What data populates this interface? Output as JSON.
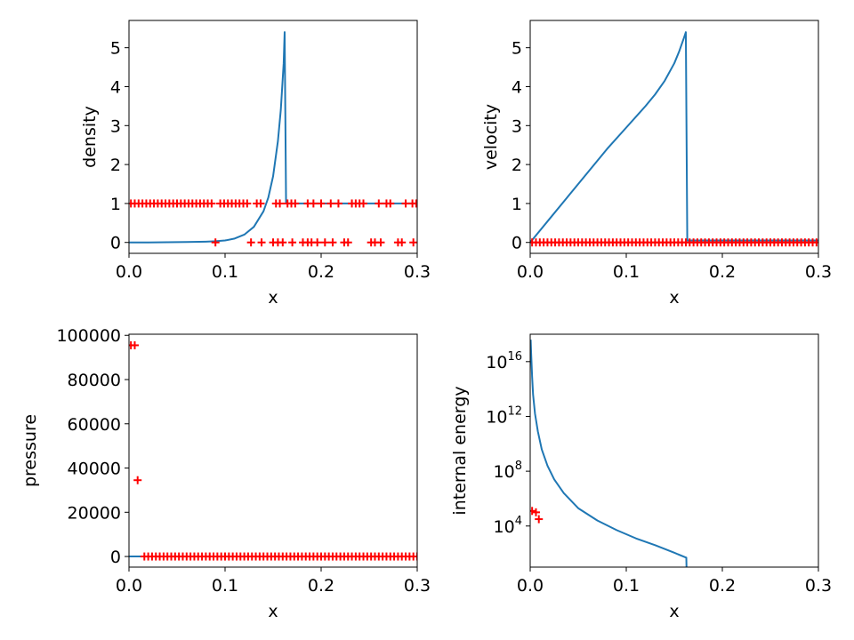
{
  "colors": {
    "line": "#1f77b4",
    "marker": "#ff0000",
    "axes": "#000000"
  },
  "chart_data": [
    {
      "type": "line",
      "xlabel": "x",
      "ylabel": "density",
      "xlim": [
        0,
        0.3
      ],
      "ylim": [
        -0.28,
        5.7
      ],
      "xticks": [
        0,
        0.1,
        0.2,
        0.3
      ],
      "xtick_labels": [
        "0.0",
        "0.1",
        "0.2",
        "0.3"
      ],
      "yticks": [
        0,
        1,
        2,
        3,
        4,
        5
      ],
      "ytick_labels": [
        "0",
        "1",
        "2",
        "3",
        "4",
        "5"
      ],
      "grid": false,
      "series": [
        {
          "kind": "line",
          "x": [
            0,
            0.02,
            0.04,
            0.06,
            0.08,
            0.09,
            0.1,
            0.11,
            0.12,
            0.13,
            0.14,
            0.145,
            0.15,
            0.155,
            0.158,
            0.161,
            0.162,
            0.1635,
            0.17,
            0.2,
            0.25,
            0.3
          ],
          "y": [
            0,
            0,
            0.005,
            0.01,
            0.02,
            0.03,
            0.05,
            0.1,
            0.2,
            0.4,
            0.8,
            1.15,
            1.7,
            2.6,
            3.4,
            4.6,
            5.4,
            1.0,
            1.0,
            1.0,
            1.0,
            1.0
          ]
        },
        {
          "kind": "scatter",
          "marker": "+",
          "x": [
            0.002,
            0.006,
            0.01,
            0.014,
            0.018,
            0.022,
            0.026,
            0.03,
            0.034,
            0.038,
            0.042,
            0.046,
            0.05,
            0.054,
            0.058,
            0.062,
            0.066,
            0.07,
            0.074,
            0.078,
            0.082,
            0.086,
            0.095,
            0.099,
            0.103,
            0.107,
            0.111,
            0.115,
            0.119,
            0.123,
            0.133,
            0.137,
            0.153,
            0.157,
            0.165,
            0.169,
            0.173,
            0.186,
            0.192,
            0.2,
            0.21,
            0.218,
            0.232,
            0.236,
            0.24,
            0.244,
            0.26,
            0.268,
            0.272,
            0.288,
            0.295,
            0.299,
            0.09,
            0.127,
            0.138,
            0.15,
            0.155,
            0.16,
            0.17,
            0.181,
            0.186,
            0.19,
            0.196,
            0.204,
            0.212,
            0.224,
            0.228,
            0.252,
            0.256,
            0.262,
            0.28,
            0.284,
            0.296
          ],
          "y": [
            1,
            1,
            1,
            1,
            1,
            1,
            1,
            1,
            1,
            1,
            1,
            1,
            1,
            1,
            1,
            1,
            1,
            1,
            1,
            1,
            1,
            1,
            1,
            1,
            1,
            1,
            1,
            1,
            1,
            1,
            1,
            1,
            1,
            1,
            1,
            1,
            1,
            1,
            1,
            1,
            1,
            1,
            1,
            1,
            1,
            1,
            1,
            1,
            1,
            1,
            1,
            1,
            0,
            0,
            0,
            0,
            0,
            0,
            0,
            0,
            0,
            0,
            0,
            0,
            0,
            0,
            0,
            0,
            0,
            0,
            0,
            0,
            0
          ]
        }
      ]
    },
    {
      "type": "line",
      "xlabel": "x",
      "ylabel": "velocity",
      "xlim": [
        0,
        0.3
      ],
      "ylim": [
        -0.28,
        5.7
      ],
      "xticks": [
        0,
        0.1,
        0.2,
        0.3
      ],
      "xtick_labels": [
        "0.0",
        "0.1",
        "0.2",
        "0.3"
      ],
      "yticks": [
        0,
        1,
        2,
        3,
        4,
        5
      ],
      "ytick_labels": [
        "0",
        "1",
        "2",
        "3",
        "4",
        "5"
      ],
      "grid": false,
      "series": [
        {
          "kind": "line",
          "x": [
            0,
            0.02,
            0.04,
            0.06,
            0.08,
            0.1,
            0.12,
            0.13,
            0.14,
            0.15,
            0.155,
            0.16,
            0.162,
            0.1635,
            0.164,
            0.2,
            0.3
          ],
          "y": [
            0,
            0.6,
            1.2,
            1.8,
            2.4,
            2.95,
            3.5,
            3.8,
            4.15,
            4.6,
            4.9,
            5.25,
            5.4,
            0.05,
            0.05,
            0.05,
            0.05
          ]
        },
        {
          "kind": "scatter",
          "marker": "+",
          "x": [
            0.002,
            0.006,
            0.01,
            0.014,
            0.018,
            0.022,
            0.026,
            0.03,
            0.034,
            0.038,
            0.042,
            0.046,
            0.05,
            0.054,
            0.058,
            0.062,
            0.066,
            0.07,
            0.074,
            0.078,
            0.082,
            0.086,
            0.09,
            0.094,
            0.098,
            0.102,
            0.106,
            0.11,
            0.114,
            0.118,
            0.122,
            0.126,
            0.13,
            0.134,
            0.138,
            0.142,
            0.146,
            0.15,
            0.154,
            0.158,
            0.162,
            0.166,
            0.17,
            0.174,
            0.178,
            0.182,
            0.186,
            0.19,
            0.194,
            0.198,
            0.202,
            0.206,
            0.21,
            0.214,
            0.218,
            0.222,
            0.226,
            0.23,
            0.234,
            0.238,
            0.242,
            0.246,
            0.25,
            0.254,
            0.258,
            0.262,
            0.266,
            0.27,
            0.274,
            0.278,
            0.282,
            0.286,
            0.29,
            0.294,
            0.298
          ],
          "y": [
            0,
            0,
            0,
            0,
            0,
            0,
            0,
            0,
            0,
            0,
            0,
            0,
            0,
            0,
            0,
            0,
            0,
            0,
            0,
            0,
            0,
            0,
            0,
            0,
            0,
            0,
            0,
            0,
            0,
            0,
            0,
            0,
            0,
            0,
            0,
            0,
            0,
            0,
            0,
            0,
            0,
            0,
            0,
            0,
            0,
            0,
            0,
            0,
            0,
            0,
            0,
            0,
            0,
            0,
            0,
            0,
            0,
            0,
            0,
            0,
            0,
            0,
            0,
            0,
            0,
            0,
            0,
            0,
            0,
            0,
            0,
            0,
            0,
            0,
            0
          ]
        }
      ]
    },
    {
      "type": "line",
      "xlabel": "x",
      "ylabel": "pressure",
      "xlim": [
        0,
        0.3
      ],
      "ylim": [
        -4800,
        100500
      ],
      "xticks": [
        0,
        0.1,
        0.2,
        0.3
      ],
      "xtick_labels": [
        "0.0",
        "0.1",
        "0.2",
        "0.3"
      ],
      "yticks": [
        0,
        20000,
        40000,
        60000,
        80000,
        100000
      ],
      "ytick_labels": [
        "0",
        "20000",
        "40000",
        "60000",
        "80000",
        "100000"
      ],
      "grid": false,
      "series": [
        {
          "kind": "line",
          "x": [
            0,
            0.3
          ],
          "y": [
            0,
            0
          ]
        },
        {
          "kind": "scatter",
          "marker": "+",
          "x": [
            0.002,
            0.006,
            0.009,
            0.016,
            0.02,
            0.024,
            0.028,
            0.032,
            0.036,
            0.04,
            0.044,
            0.048,
            0.052,
            0.056,
            0.06,
            0.064,
            0.068,
            0.072,
            0.076,
            0.08,
            0.084,
            0.088,
            0.092,
            0.096,
            0.1,
            0.104,
            0.108,
            0.112,
            0.116,
            0.12,
            0.124,
            0.128,
            0.132,
            0.136,
            0.14,
            0.144,
            0.148,
            0.152,
            0.156,
            0.16,
            0.164,
            0.168,
            0.172,
            0.176,
            0.18,
            0.184,
            0.188,
            0.192,
            0.196,
            0.2,
            0.204,
            0.208,
            0.212,
            0.216,
            0.22,
            0.224,
            0.228,
            0.232,
            0.236,
            0.24,
            0.244,
            0.248,
            0.252,
            0.256,
            0.26,
            0.264,
            0.268,
            0.272,
            0.276,
            0.28,
            0.284,
            0.288,
            0.292,
            0.296,
            0.3
          ],
          "y": [
            95500,
            95500,
            34500,
            0,
            0,
            0,
            0,
            0,
            0,
            0,
            0,
            0,
            0,
            0,
            0,
            0,
            0,
            0,
            0,
            0,
            0,
            0,
            0,
            0,
            0,
            0,
            0,
            0,
            0,
            0,
            0,
            0,
            0,
            0,
            0,
            0,
            0,
            0,
            0,
            0,
            0,
            0,
            0,
            0,
            0,
            0,
            0,
            0,
            0,
            0,
            0,
            0,
            0,
            0,
            0,
            0,
            0,
            0,
            0,
            0,
            0,
            0,
            0,
            0,
            0,
            0,
            0,
            0,
            0,
            0,
            0,
            0,
            0,
            0,
            0
          ]
        }
      ]
    },
    {
      "type": "line",
      "xlabel": "x",
      "ylabel": "internal energy",
      "yscale": "log",
      "xlim": [
        0,
        0.3
      ],
      "ylim_log10": [
        1.0,
        18.0
      ],
      "xticks": [
        0,
        0.1,
        0.2,
        0.3
      ],
      "xtick_labels": [
        "0.0",
        "0.1",
        "0.2",
        "0.3"
      ],
      "yticks_log10": [
        4,
        8,
        12,
        16
      ],
      "ytick_base": "10",
      "ytick_exponents": [
        "4",
        "8",
        "12",
        "16"
      ],
      "grid": false,
      "series": [
        {
          "kind": "line",
          "x": [
            0.0005,
            0.001,
            0.002,
            0.003,
            0.005,
            0.008,
            0.012,
            0.018,
            0.025,
            0.035,
            0.05,
            0.07,
            0.09,
            0.11,
            0.13,
            0.15,
            0.162,
            0.1625,
            0.163
          ],
          "y_log10": [
            17.6,
            16.6,
            14.9,
            13.6,
            12.2,
            10.9,
            9.6,
            8.4,
            7.4,
            6.4,
            5.3,
            4.4,
            3.7,
            3.1,
            2.6,
            2.05,
            1.7,
            1.7,
            0.0
          ]
        },
        {
          "kind": "scatter",
          "marker": "+",
          "x": [
            0.002,
            0.006,
            0.009
          ],
          "y_log10": [
            5.1,
            5.0,
            4.5
          ]
        }
      ]
    }
  ]
}
